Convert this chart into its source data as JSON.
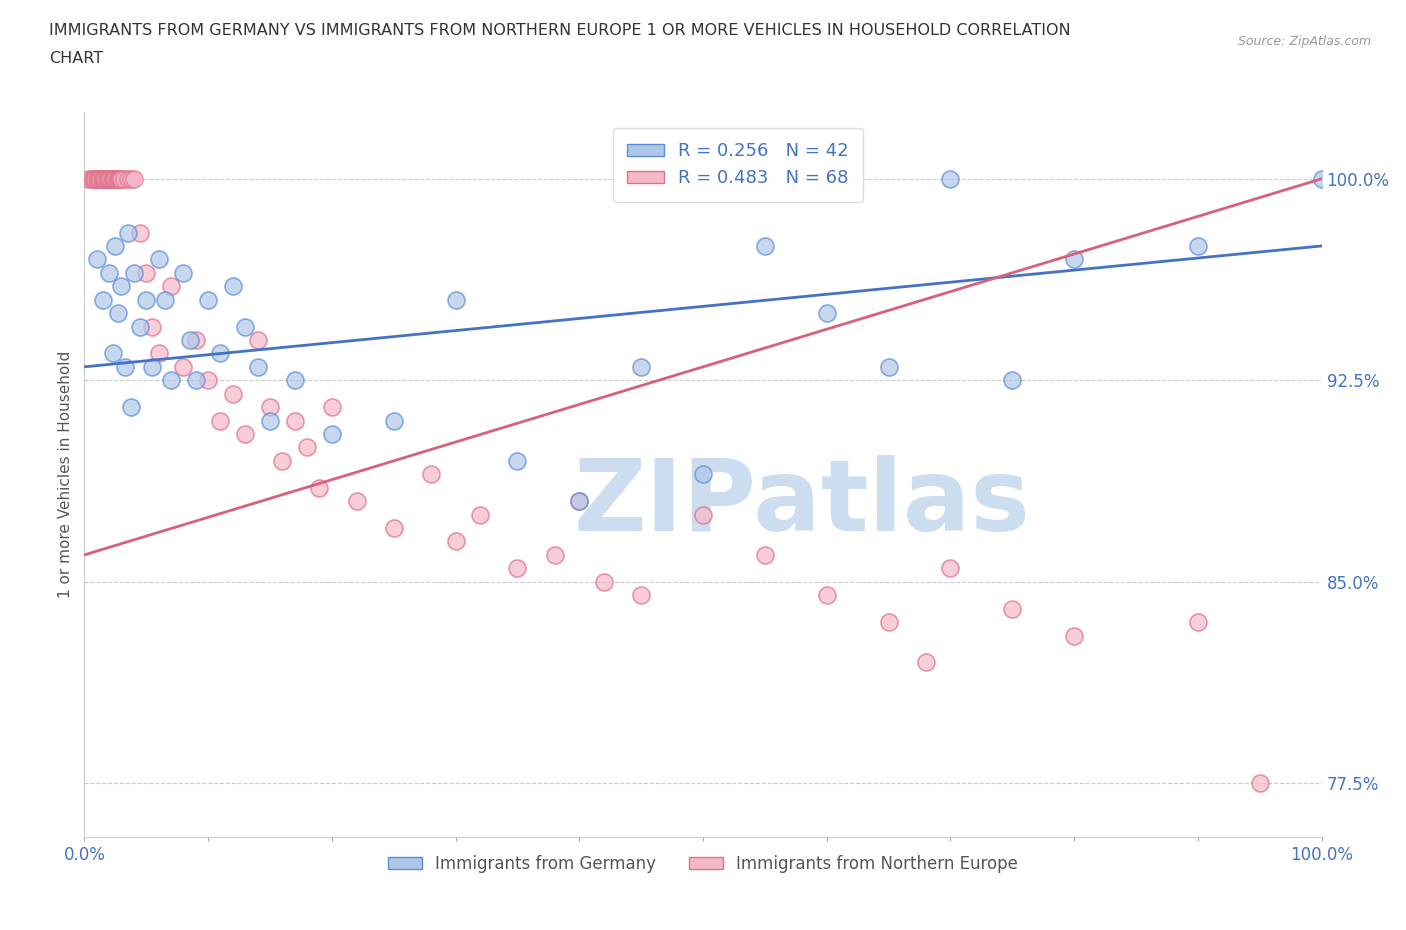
{
  "title_line1": "IMMIGRANTS FROM GERMANY VS IMMIGRANTS FROM NORTHERN EUROPE 1 OR MORE VEHICLES IN HOUSEHOLD CORRELATION",
  "title_line2": "CHART",
  "source": "Source: ZipAtlas.com",
  "ylabel": "1 or more Vehicles in Household",
  "xlim": [
    0.0,
    100.0
  ],
  "ylim": [
    75.5,
    102.5
  ],
  "yticks": [
    77.5,
    85.0,
    92.5,
    100.0
  ],
  "ytick_labels": [
    "77.5%",
    "85.0%",
    "92.5%",
    "100.0%"
  ],
  "xticks": [
    0.0,
    10.0,
    20.0,
    30.0,
    40.0,
    50.0,
    60.0,
    70.0,
    80.0,
    90.0,
    100.0
  ],
  "xtick_labels": [
    "0.0%",
    "",
    "",
    "",
    "",
    "",
    "",
    "",
    "",
    "",
    "100.0%"
  ],
  "R_germany": 0.256,
  "N_germany": 42,
  "R_northern": 0.483,
  "N_northern": 68,
  "color_germany": "#aec6e8",
  "color_northern": "#f4b8c8",
  "edge_color_germany": "#5b8dd9",
  "edge_color_northern": "#e0708a",
  "line_color_germany": "#4472c4",
  "line_color_northern": "#d9607a",
  "watermark_text": "ZIPatlas",
  "watermark_color": "#ccddf0",
  "germany_x": [
    1.0,
    1.5,
    2.0,
    2.3,
    2.5,
    2.7,
    3.0,
    3.3,
    3.5,
    3.8,
    4.0,
    4.5,
    5.0,
    5.5,
    6.0,
    6.5,
    7.0,
    8.0,
    8.5,
    9.0,
    10.0,
    11.0,
    12.0,
    13.0,
    14.0,
    15.0,
    17.0,
    20.0,
    25.0,
    30.0,
    35.0,
    40.0,
    45.0,
    50.0,
    55.0,
    60.0,
    65.0,
    70.0,
    75.0,
    80.0,
    90.0,
    100.0
  ],
  "germany_y": [
    97.0,
    95.5,
    96.5,
    93.5,
    97.5,
    95.0,
    96.0,
    93.0,
    98.0,
    91.5,
    96.5,
    94.5,
    95.5,
    93.0,
    97.0,
    95.5,
    92.5,
    96.5,
    94.0,
    92.5,
    95.5,
    93.5,
    96.0,
    94.5,
    93.0,
    91.0,
    92.5,
    90.5,
    91.0,
    95.5,
    89.5,
    88.0,
    93.0,
    89.0,
    97.5,
    95.0,
    93.0,
    100.0,
    92.5,
    97.0,
    97.5,
    100.0
  ],
  "northern_x": [
    0.3,
    0.5,
    0.7,
    0.8,
    0.9,
    1.0,
    1.1,
    1.2,
    1.3,
    1.4,
    1.5,
    1.6,
    1.7,
    1.8,
    1.9,
    2.0,
    2.1,
    2.2,
    2.3,
    2.4,
    2.5,
    2.6,
    2.7,
    2.8,
    2.9,
    3.0,
    3.2,
    3.5,
    3.8,
    4.0,
    4.5,
    5.0,
    5.5,
    6.0,
    7.0,
    8.0,
    9.0,
    10.0,
    11.0,
    12.0,
    13.0,
    14.0,
    15.0,
    16.0,
    17.0,
    18.0,
    19.0,
    20.0,
    22.0,
    25.0,
    28.0,
    30.0,
    32.0,
    35.0,
    38.0,
    40.0,
    42.0,
    45.0,
    50.0,
    55.0,
    60.0,
    65.0,
    68.0,
    70.0,
    75.0,
    80.0,
    90.0,
    95.0
  ],
  "northern_y": [
    100.0,
    100.0,
    100.0,
    100.0,
    100.0,
    100.0,
    100.0,
    100.0,
    100.0,
    100.0,
    100.0,
    100.0,
    100.0,
    100.0,
    100.0,
    100.0,
    100.0,
    100.0,
    100.0,
    100.0,
    100.0,
    100.0,
    100.0,
    100.0,
    100.0,
    100.0,
    100.0,
    100.0,
    100.0,
    100.0,
    98.0,
    96.5,
    94.5,
    93.5,
    96.0,
    93.0,
    94.0,
    92.5,
    91.0,
    92.0,
    90.5,
    94.0,
    91.5,
    89.5,
    91.0,
    90.0,
    88.5,
    91.5,
    88.0,
    87.0,
    89.0,
    86.5,
    87.5,
    85.5,
    86.0,
    88.0,
    85.0,
    84.5,
    87.5,
    86.0,
    84.5,
    83.5,
    82.0,
    85.5,
    84.0,
    83.0,
    83.5,
    77.5
  ]
}
